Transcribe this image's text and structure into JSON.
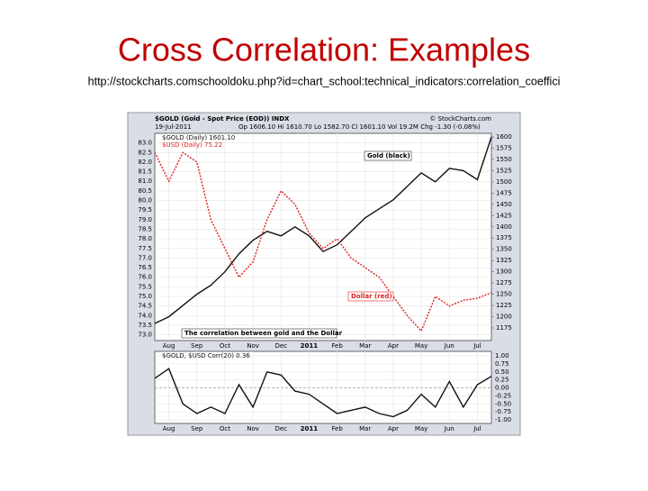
{
  "slide": {
    "title": "Cross Correlation: Examples",
    "url": "http://stockcharts.comschooldoku.php?id=chart_school:technical_indicators:correlation_coeffici"
  },
  "chart_data": [
    {
      "type": "line",
      "title": "$GOLD (Gold - Spot Price (EOD)) INDX",
      "date": "19-Jul-2011",
      "quote": "Op 1606.10 Hi 1610.70 Lo 1582.70 Cl 1601.10 Vol 19.2M Chg -1.30 (-0.08%)",
      "source": "© StockCharts.com",
      "annotations": [
        "Gold (black)",
        "Dollar (red)",
        "The correlation between gold and the Dollar"
      ],
      "categories": [
        null,
        "Aug",
        null,
        "Sep",
        null,
        "Oct",
        null,
        "Nov",
        null,
        "Dec",
        null,
        "2011",
        null,
        "Feb",
        null,
        "Mar",
        null,
        "Apr",
        null,
        "May",
        null,
        "Jun",
        null,
        "Jul",
        null
      ],
      "grid": true,
      "ylim": [
        72.7,
        83.5
      ],
      "yticks": [
        {
          "value": 73,
          "label": "73.0"
        },
        {
          "value": 73.5,
          "label": "73.5"
        },
        {
          "value": 74,
          "label": "74.0"
        },
        {
          "value": 74.5,
          "label": "74.5"
        },
        {
          "value": 75,
          "label": "75.0"
        },
        {
          "value": 75.5,
          "label": "75.5"
        },
        {
          "value": 76,
          "label": "76.0"
        },
        {
          "value": 76.5,
          "label": "76.5"
        },
        {
          "value": 77,
          "label": "77.0"
        },
        {
          "value": 77.5,
          "label": "77.5"
        },
        {
          "value": 78,
          "label": "78.0"
        },
        {
          "value": 78.5,
          "label": "78.5"
        },
        {
          "value": 79,
          "label": "79.0"
        },
        {
          "value": 79.5,
          "label": "79.5"
        },
        {
          "value": 80,
          "label": "80.0"
        },
        {
          "value": 80.5,
          "label": "80.5"
        },
        {
          "value": 81,
          "label": "81.0"
        },
        {
          "value": 81.5,
          "label": "81.5"
        },
        {
          "value": 82,
          "label": "82.0"
        },
        {
          "value": 82.5,
          "label": "82.5"
        },
        {
          "value": 83,
          "label": "83.0"
        }
      ],
      "y2lim": [
        1147,
        1608
      ],
      "y2ticks": [
        1175,
        1200,
        1225,
        1250,
        1275,
        1300,
        1325,
        1350,
        1375,
        1400,
        1425,
        1450,
        1475,
        1500,
        1525,
        1550,
        1575,
        1600
      ],
      "series": [
        {
          "name": "$GOLD (Daily) 1601.10",
          "color": "#111111",
          "axis": "y2",
          "values": [
            1185,
            1200,
            1225,
            1250,
            1270,
            1300,
            1340,
            1370,
            1390,
            1380,
            1400,
            1380,
            1345,
            1360,
            1390,
            1420,
            1440,
            1460,
            1490,
            1520,
            1500,
            1530,
            1525,
            1505,
            1600
          ]
        },
        {
          "name": "$USD (Daily) 75.22",
          "color": "#e02020",
          "dashed": true,
          "values": [
            82.5,
            81,
            82.5,
            82,
            79,
            77.5,
            76,
            76.8,
            79,
            80.5,
            79.8,
            78.3,
            77.5,
            78,
            77,
            76.5,
            76,
            75,
            74,
            73.2,
            75,
            74.5,
            74.8,
            74.9,
            75.2
          ]
        }
      ]
    },
    {
      "type": "line",
      "categories": [
        null,
        "Aug",
        null,
        "Sep",
        null,
        "Oct",
        null,
        "Nov",
        null,
        "Dec",
        null,
        "2011",
        null,
        "Feb",
        null,
        "Mar",
        null,
        "Apr",
        null,
        "May",
        null,
        "Jun",
        null,
        "Jul",
        null
      ],
      "grid": true,
      "ylim": [
        -1.11,
        1.14
      ],
      "yticks": [
        {
          "value": -1,
          "label": "-1.00"
        },
        {
          "value": -0.75,
          "label": "-0.75"
        },
        {
          "value": -0.5,
          "label": "-0.50"
        },
        {
          "value": -0.25,
          "label": "-0.25"
        },
        {
          "value": 0,
          "label": "0.00"
        },
        {
          "value": 0.25,
          "label": "0.25"
        },
        {
          "value": 0.5,
          "label": "0.50"
        },
        {
          "value": 0.75,
          "label": "0.75"
        },
        {
          "value": 1,
          "label": "1.00"
        }
      ],
      "series": [
        {
          "name": "$GOLD, $USD Corr(20) 0.36",
          "color": "#111111",
          "values": [
            0.3,
            0.6,
            -0.5,
            -0.8,
            -0.6,
            -0.8,
            0.1,
            -0.6,
            0.5,
            0.4,
            -0.1,
            -0.2,
            -0.5,
            -0.8,
            -0.7,
            -0.6,
            -0.8,
            -0.9,
            -0.7,
            -0.2,
            -0.6,
            0.2,
            -0.6,
            0.1,
            0.36
          ]
        }
      ]
    }
  ]
}
